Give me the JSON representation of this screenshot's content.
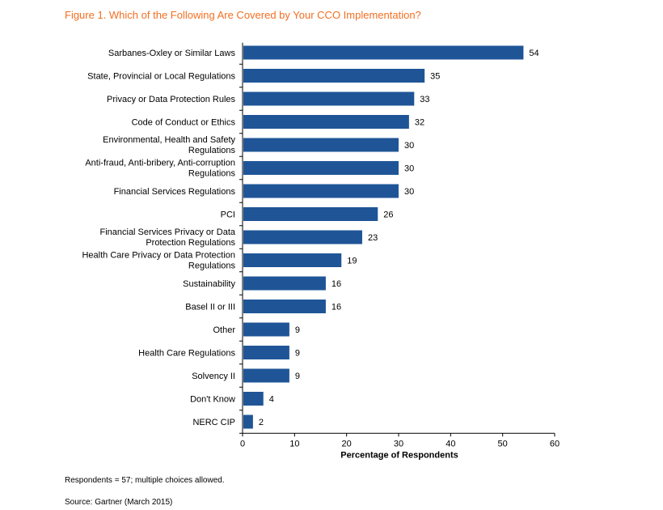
{
  "figure": {
    "title": "Figure 1. Which of the Following Are Covered by Your CCO Implementation?",
    "title_color": "#f26f21",
    "note": "Respondents = 57; multiple choices allowed.",
    "source": "Source: Gartner (March 2015)"
  },
  "chart_data": {
    "type": "bar",
    "orientation": "horizontal",
    "bar_color": "#1f5597",
    "categories": [
      [
        "Sarbanes-Oxley or Similar Laws"
      ],
      [
        "State, Provincial or Local Regulations"
      ],
      [
        "Privacy or Data Protection Rules"
      ],
      [
        "Code of Conduct or Ethics"
      ],
      [
        "Environmental, Health and Safety",
        "Regulations"
      ],
      [
        "Anti-fraud, Anti-bribery, Anti-corruption",
        "Regulations"
      ],
      [
        "Financial Services Regulations"
      ],
      [
        "PCI"
      ],
      [
        "Financial Services Privacy or Data",
        "Protection Regulations"
      ],
      [
        "Health Care Privacy or Data Protection",
        "Regulations"
      ],
      [
        "Sustainability"
      ],
      [
        "Basel II or III"
      ],
      [
        "Other"
      ],
      [
        "Health Care Regulations"
      ],
      [
        "Solvency II"
      ],
      [
        "Don't Know"
      ],
      [
        "NERC CIP"
      ]
    ],
    "values": [
      54,
      35,
      33,
      32,
      30,
      30,
      30,
      26,
      23,
      19,
      16,
      16,
      9,
      9,
      9,
      4,
      2
    ],
    "xlabel": "Percentage of Respondents",
    "xlim": [
      0,
      60
    ],
    "xticks": [
      0,
      10,
      20,
      30,
      40,
      50,
      60
    ],
    "grid": false,
    "legend": "none"
  }
}
